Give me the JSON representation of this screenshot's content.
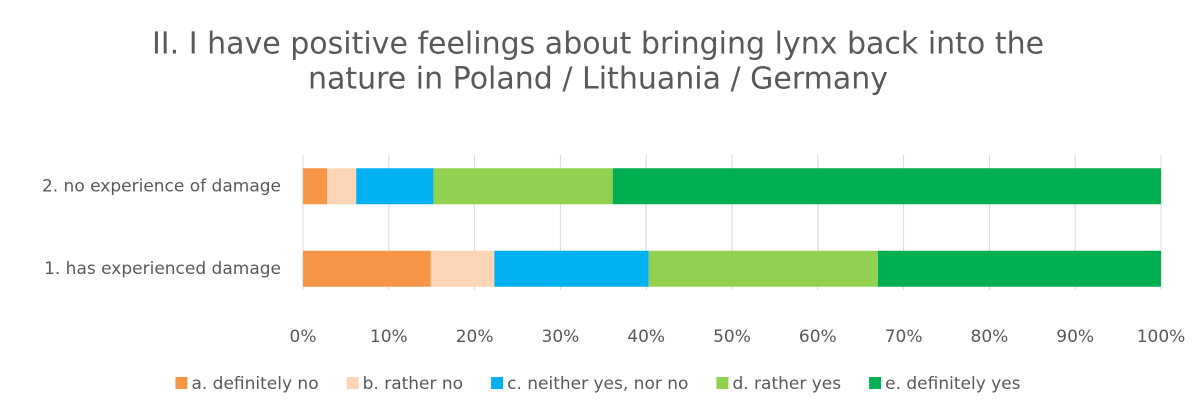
{
  "chart_data": {
    "type": "stacked-bar-horizontal",
    "title": [
      "II. I have positive feelings about bringing lynx back into the",
      "nature in Poland / Lithuania / Germany"
    ],
    "categories": [
      "2. no experience of damage",
      "1. has experienced damage"
    ],
    "series": [
      {
        "name": "a. definitely no",
        "color": "#f79646",
        "values": [
          2.8,
          14.9
        ]
      },
      {
        "name": "b. rather no",
        "color": "#fbd5b5",
        "values": [
          3.4,
          7.4
        ]
      },
      {
        "name": "c. neither yes, nor no",
        "color": "#00b0f0",
        "values": [
          9.0,
          18.0
        ]
      },
      {
        "name": "d. rather yes",
        "color": "#92d050",
        "values": [
          20.9,
          26.7
        ]
      },
      {
        "name": "e. definitely yes",
        "color": "#00b050",
        "values": [
          63.9,
          33.0
        ]
      }
    ],
    "xlim": [
      0,
      100
    ],
    "xticks": [
      {
        "value": 0,
        "label": "0%"
      },
      {
        "value": 10,
        "label": "10%"
      },
      {
        "value": 20,
        "label": "20%"
      },
      {
        "value": 30,
        "label": "30%"
      },
      {
        "value": 40,
        "label": "40%"
      },
      {
        "value": 50,
        "label": "50%"
      },
      {
        "value": 60,
        "label": "60%"
      },
      {
        "value": 70,
        "label": "70%"
      },
      {
        "value": 80,
        "label": "80%"
      },
      {
        "value": 90,
        "label": "90%"
      },
      {
        "value": 100,
        "label": "100%"
      }
    ],
    "grid": true,
    "legend": "bottom"
  }
}
